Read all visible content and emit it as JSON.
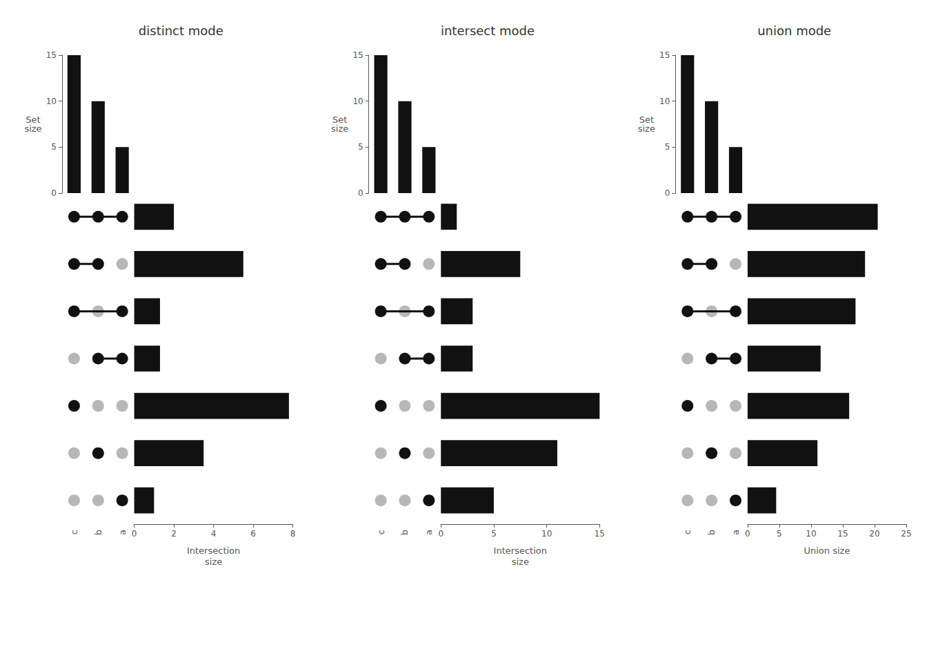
{
  "chart_data": [
    {
      "type": "upset",
      "title": "distinct mode",
      "set_sizes": {
        "type": "bar",
        "categories": [
          "c",
          "b",
          "a"
        ],
        "values": [
          15,
          10,
          5
        ],
        "ylabel": "Set\nsize",
        "ylim": [
          0,
          15
        ],
        "yticks": [
          0,
          5,
          10,
          15
        ],
        "color": "#111111",
        "tick_labels": "y",
        "grid": false
      },
      "matrix": {
        "type": "dot_matrix",
        "categories": [
          "c",
          "b",
          "a"
        ],
        "rows": [
          [
            1,
            1,
            1
          ],
          [
            1,
            1,
            0
          ],
          [
            1,
            0,
            1
          ],
          [
            0,
            1,
            1
          ],
          [
            1,
            0,
            0
          ],
          [
            0,
            1,
            0
          ],
          [
            0,
            0,
            1
          ]
        ],
        "color": "#111111",
        "tick_labels": "x"
      },
      "intersections": {
        "type": "bar",
        "orientation": "horizontal",
        "values": [
          2.0,
          5.5,
          1.3,
          1.3,
          7.8,
          3.5,
          1.0
        ],
        "xlabel": "Intersection\nsize",
        "xlim": [
          0,
          8
        ],
        "xticks": [
          0,
          2,
          4,
          6,
          8
        ],
        "color": "#111111",
        "tick_labels": "x",
        "grid": false
      }
    },
    {
      "type": "upset",
      "title": "intersect mode",
      "set_sizes": {
        "type": "bar",
        "categories": [
          "c",
          "b",
          "a"
        ],
        "values": [
          15,
          10,
          5
        ],
        "ylabel": "Set\nsize",
        "ylim": [
          0,
          15
        ],
        "yticks": [
          0,
          5,
          10,
          15
        ],
        "color": "#111111",
        "tick_labels": "y",
        "grid": false
      },
      "matrix": {
        "type": "dot_matrix",
        "categories": [
          "c",
          "b",
          "a"
        ],
        "rows": [
          [
            1,
            1,
            1
          ],
          [
            1,
            1,
            0
          ],
          [
            1,
            0,
            1
          ],
          [
            0,
            1,
            1
          ],
          [
            1,
            0,
            0
          ],
          [
            0,
            1,
            0
          ],
          [
            0,
            0,
            1
          ]
        ],
        "color": "#111111",
        "tick_labels": "x"
      },
      "intersections": {
        "type": "bar",
        "orientation": "horizontal",
        "values": [
          1.5,
          7.5,
          3.0,
          3.0,
          15.0,
          11.0,
          5.0
        ],
        "xlabel": "Intersection\nsize",
        "xlim": [
          0,
          15
        ],
        "xticks": [
          0,
          5,
          10,
          15
        ],
        "color": "#111111",
        "tick_labels": "x",
        "grid": false
      }
    },
    {
      "type": "upset",
      "title": "union mode",
      "set_sizes": {
        "type": "bar",
        "categories": [
          "c",
          "b",
          "a"
        ],
        "values": [
          15,
          10,
          5
        ],
        "ylabel": "Set\nsize",
        "ylim": [
          0,
          15
        ],
        "yticks": [
          0,
          5,
          10,
          15
        ],
        "color": "#111111",
        "tick_labels": "y",
        "grid": false
      },
      "matrix": {
        "type": "dot_matrix",
        "categories": [
          "c",
          "b",
          "a"
        ],
        "rows": [
          [
            1,
            1,
            1
          ],
          [
            1,
            1,
            0
          ],
          [
            1,
            0,
            1
          ],
          [
            0,
            1,
            1
          ],
          [
            1,
            0,
            0
          ],
          [
            0,
            1,
            0
          ],
          [
            0,
            0,
            1
          ]
        ],
        "color": "#111111",
        "tick_labels": "x"
      },
      "intersections": {
        "type": "bar",
        "orientation": "horizontal",
        "values": [
          20.5,
          18.5,
          17.0,
          11.5,
          16.0,
          11.0,
          4.5
        ],
        "xlabel": "Union size",
        "xlim": [
          0,
          25
        ],
        "xticks": [
          0,
          5,
          10,
          15,
          20,
          25
        ],
        "color": "#111111",
        "tick_labels": "x",
        "grid": false
      }
    }
  ]
}
